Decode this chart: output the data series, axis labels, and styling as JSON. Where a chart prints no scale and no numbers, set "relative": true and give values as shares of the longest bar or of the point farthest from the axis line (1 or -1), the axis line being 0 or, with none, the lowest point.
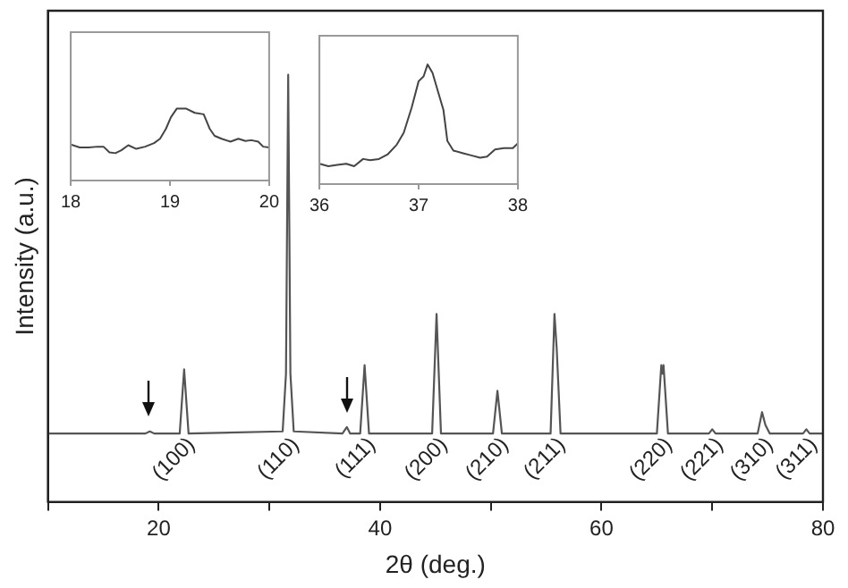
{
  "chart_data": [
    {
      "type": "line",
      "xlabel": "2θ (deg.)",
      "ylabel": "Intensity (a.u.)",
      "relative": true,
      "grid": false,
      "legend": false,
      "marker": "none",
      "tick_labels": "x",
      "xlim": [
        10,
        80
      ],
      "xticks": [
        {
          "value": 10,
          "label": null
        },
        20,
        {
          "value": 30,
          "label": null
        },
        40,
        {
          "value": 50,
          "label": null
        },
        60,
        {
          "value": 70,
          "label": null
        },
        80
      ],
      "series": [
        {
          "color": "#555555",
          "x": [
            10,
            18.8,
            19.2,
            19.6,
            21.9,
            22.3,
            22.7,
            31.2,
            31.5,
            31.7,
            31.9,
            32.2,
            36.6,
            37.0,
            37.3,
            38.2,
            38.6,
            39.0,
            44.7,
            45.1,
            45.5,
            50.2,
            50.6,
            51.0,
            55.4,
            55.75,
            55.95,
            56.3,
            65.0,
            65.4,
            65.5,
            65.6,
            66.0,
            69.7,
            70.0,
            70.3,
            74.1,
            74.5,
            74.8,
            75.2,
            78.2,
            78.5,
            78.8,
            80
          ],
          "values": [
            0.16,
            0.16,
            0.165,
            0.16,
            0.16,
            0.31,
            0.16,
            0.165,
            0.3,
            1,
            0.3,
            0.165,
            0.16,
            0.175,
            0.16,
            0.16,
            0.32,
            0.16,
            0.16,
            0.44,
            0.16,
            0.16,
            0.26,
            0.16,
            0.16,
            0.44,
            0.36,
            0.16,
            0.16,
            0.32,
            0.3,
            0.32,
            0.16,
            0.16,
            0.17,
            0.16,
            0.16,
            0.21,
            0.18,
            0.16,
            0.16,
            0.17,
            0.16,
            0.16
          ]
        }
      ],
      "annotations": [
        "(100)",
        "(110)",
        "(111)",
        "(200)",
        "(210)",
        "(211)",
        "(220)",
        "(221)",
        "(310)",
        "(311)"
      ]
    },
    {
      "type": "line",
      "relative": true,
      "grid": false,
      "legend": false,
      "marker": "none",
      "tick_labels": "x",
      "xlim": [
        18,
        20
      ],
      "xticks": [
        18,
        19,
        20
      ],
      "series": [
        {
          "color": "#444444",
          "x": [
            18.0,
            18.09,
            18.18,
            18.27,
            18.33,
            18.39,
            18.45,
            18.51,
            18.58,
            18.66,
            18.75,
            18.84,
            18.9,
            18.96,
            19.01,
            19.07,
            19.16,
            19.25,
            19.34,
            19.4,
            19.45,
            19.52,
            19.61,
            19.69,
            19.76,
            19.82,
            19.89,
            19.94,
            20.0
          ],
          "values": [
            0.5,
            0.46,
            0.46,
            0.47,
            0.47,
            0.39,
            0.38,
            0.42,
            0.49,
            0.44,
            0.47,
            0.52,
            0.58,
            0.72,
            0.88,
            1,
            1,
            0.94,
            0.92,
            0.72,
            0.62,
            0.58,
            0.54,
            0.58,
            0.55,
            0.56,
            0.54,
            0.47,
            0.46
          ]
        }
      ]
    },
    {
      "type": "line",
      "relative": true,
      "grid": false,
      "legend": false,
      "marker": "none",
      "tick_labels": "x",
      "xlim": [
        36,
        38
      ],
      "xticks": [
        36,
        37,
        38
      ],
      "series": [
        {
          "color": "#444444",
          "x": [
            36.0,
            36.09,
            36.18,
            36.27,
            36.35,
            36.44,
            36.51,
            36.6,
            36.69,
            36.78,
            36.85,
            36.93,
            37.0,
            37.05,
            37.09,
            37.14,
            37.2,
            37.25,
            37.29,
            37.35,
            37.44,
            37.53,
            37.62,
            37.69,
            37.77,
            37.86,
            37.95,
            38.0
          ],
          "values": [
            0.17,
            0.15,
            0.16,
            0.17,
            0.15,
            0.21,
            0.2,
            0.21,
            0.25,
            0.33,
            0.43,
            0.64,
            0.86,
            0.9,
            1,
            0.93,
            0.76,
            0.62,
            0.36,
            0.28,
            0.26,
            0.24,
            0.22,
            0.23,
            0.29,
            0.3,
            0.3,
            0.34
          ]
        }
      ]
    }
  ]
}
